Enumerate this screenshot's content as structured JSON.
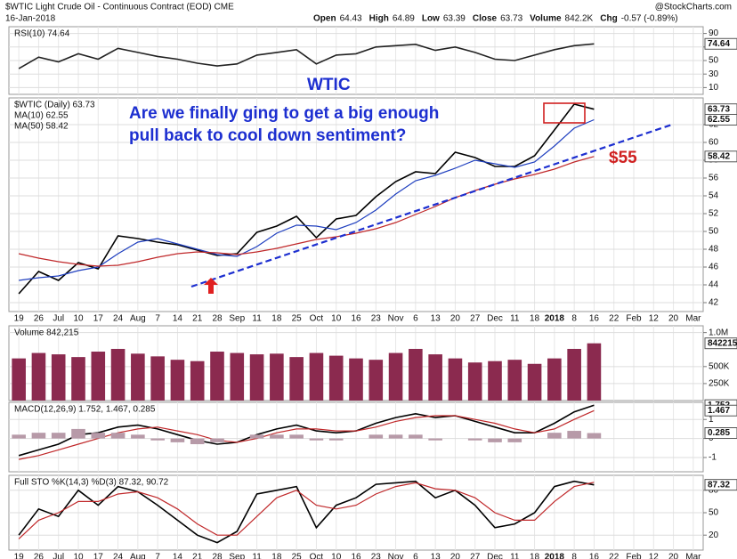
{
  "header": {
    "title": "$WTIC Light Crude Oil - Continuous Contract (EOD) CME",
    "date": "16-Jan-2018",
    "source": "@StockCharts.com",
    "quote": [
      {
        "label": "Open",
        "value": 64.43
      },
      {
        "label": "High",
        "value": 64.89
      },
      {
        "label": "Low",
        "value": 63.39
      },
      {
        "label": "Close",
        "value": 63.73
      },
      {
        "label": "Volume",
        "value": "842.2K"
      },
      {
        "label": "Chg",
        "value": "-0.57 (-0.89%)"
      }
    ]
  },
  "annotations": {
    "symbol": "WTIC",
    "question": [
      "Are we finally ging to get a big enough",
      "pull back to cool down sentiment?"
    ],
    "target": "$55"
  },
  "chart_data": [
    {
      "type": "line",
      "ylim": [
        0,
        100
      ],
      "yticks": [
        10,
        30,
        50,
        70,
        90
      ],
      "grid": true,
      "tags": [
        74.64
      ],
      "series": [
        {
          "name": "RSI(10) 74.64",
          "color": "#222222",
          "values": [
            38,
            55,
            48,
            60,
            52,
            68,
            62,
            56,
            52,
            46,
            42,
            45,
            58,
            62,
            66,
            45,
            58,
            60,
            70,
            72,
            74,
            65,
            70,
            62,
            52,
            50,
            58,
            66,
            72,
            74.64,
            null,
            null,
            null,
            null,
            null
          ]
        }
      ]
    },
    {
      "type": "line",
      "ylim": [
        41,
        65
      ],
      "yticks": [
        42,
        44,
        46,
        48,
        50,
        52,
        54,
        56,
        58,
        60,
        62
      ],
      "grid": true,
      "tags": [
        63.73,
        62.55,
        58.42
      ],
      "categories": [
        "19",
        "26",
        "Jul",
        "10",
        "17",
        "24",
        "Aug",
        "7",
        "14",
        "21",
        "28",
        "Sep",
        "11",
        "18",
        "25",
        "Oct",
        "10",
        "16",
        "23",
        "Nov",
        "6",
        "13",
        "20",
        "27",
        "Dec",
        "11",
        "18",
        "2018",
        "8",
        "16",
        "22",
        "Feb",
        "12",
        "20",
        "Mar"
      ],
      "series": [
        {
          "name": "$WTIC (Daily) 63.73",
          "color": "#000000",
          "values": [
            43,
            45.5,
            44.5,
            46.5,
            45.8,
            49.5,
            49.2,
            48.8,
            48.5,
            47.9,
            47.3,
            47.5,
            49.9,
            50.6,
            51.7,
            49.3,
            51.4,
            51.8,
            53.9,
            55.6,
            56.7,
            56.5,
            58.9,
            58.3,
            57.3,
            57.3,
            58.5,
            61.4,
            64.3,
            63.73,
            null,
            null,
            null,
            null,
            null
          ]
        },
        {
          "name": "MA(10) 62.55",
          "color": "#1f3fbf",
          "values": [
            44.5,
            44.8,
            45.0,
            45.6,
            46.0,
            47.5,
            48.8,
            49.2,
            48.6,
            48.0,
            47.4,
            47.2,
            48.3,
            49.8,
            50.7,
            50.6,
            50.2,
            51.0,
            52.4,
            54.2,
            55.7,
            56.3,
            57.1,
            58.0,
            57.6,
            57.2,
            57.8,
            59.6,
            61.6,
            62.55,
            null,
            null,
            null,
            null,
            null
          ]
        },
        {
          "name": "MA(50) 58.42",
          "color": "#c0282a",
          "values": [
            47.5,
            47.0,
            46.6,
            46.3,
            46.1,
            46.2,
            46.6,
            47.1,
            47.5,
            47.7,
            47.6,
            47.4,
            47.7,
            48.1,
            48.6,
            49.1,
            49.4,
            49.8,
            50.3,
            51.0,
            51.9,
            52.8,
            53.8,
            54.6,
            55.3,
            55.9,
            56.4,
            57.0,
            57.8,
            58.42,
            null,
            null,
            null,
            null,
            null
          ]
        }
      ]
    },
    {
      "type": "bar",
      "ylim": [
        0,
        1100000
      ],
      "yticks": [
        {
          "value": 250000,
          "label": "250K"
        },
        {
          "value": 500000,
          "label": "500K"
        },
        {
          "value": 1000000,
          "label": "1.0M"
        }
      ],
      "grid": true,
      "tags": [
        842215
      ],
      "series": [
        {
          "name": "Volume 842,215",
          "color": "#8b2a4f",
          "values": [
            620000,
            700000,
            680000,
            640000,
            720000,
            760000,
            690000,
            650000,
            600000,
            580000,
            720000,
            700000,
            680000,
            690000,
            640000,
            700000,
            660000,
            620000,
            600000,
            700000,
            760000,
            680000,
            620000,
            560000,
            580000,
            600000,
            540000,
            620000,
            760000,
            842215,
            null,
            null,
            null,
            null,
            null
          ]
        }
      ]
    },
    {
      "type": "line",
      "ylim": [
        -1.75,
        1.9
      ],
      "yticks": [
        -1,
        0,
        1
      ],
      "grid": true,
      "tags": [
        1.752,
        1.467,
        0.285
      ],
      "series": [
        {
          "name": "MACD(12,26,9) 1.752, 1.467, 0.285",
          "color": "#000000",
          "values": [
            -0.9,
            -0.6,
            -0.3,
            0.2,
            0.3,
            0.6,
            0.7,
            0.5,
            0.2,
            -0.1,
            -0.3,
            -0.2,
            0.2,
            0.5,
            0.7,
            0.4,
            0.3,
            0.4,
            0.8,
            1.1,
            1.3,
            1.1,
            1.2,
            0.9,
            0.6,
            0.3,
            0.3,
            0.8,
            1.4,
            1.752,
            null,
            null,
            null,
            null,
            null
          ]
        },
        {
          "color": "#c0282a",
          "values": [
            -1.1,
            -0.9,
            -0.6,
            -0.3,
            0,
            0.3,
            0.5,
            0.6,
            0.4,
            0.2,
            -0.1,
            -0.2,
            0,
            0.3,
            0.5,
            0.5,
            0.4,
            0.4,
            0.6,
            0.9,
            1.1,
            1.2,
            1.2,
            1.0,
            0.8,
            0.5,
            0.3,
            0.5,
            1.0,
            1.467,
            null,
            null,
            null,
            null,
            null
          ]
        },
        {
          "color": "#b79aa8",
          "mark": "bar",
          "values": [
            0.2,
            0.3,
            0.3,
            0.5,
            0.3,
            0.3,
            0.2,
            -0.1,
            -0.2,
            -0.3,
            -0.2,
            0,
            0.2,
            0.2,
            0.2,
            -0.1,
            -0.1,
            0,
            0.2,
            0.2,
            0.2,
            -0.1,
            0,
            -0.1,
            -0.2,
            -0.2,
            0,
            0.3,
            0.4,
            0.285,
            null,
            null,
            null,
            null,
            null
          ]
        }
      ]
    },
    {
      "type": "line",
      "ylim": [
        0,
        100
      ],
      "yticks": [
        20,
        50,
        80
      ],
      "grid": true,
      "tags": [
        87.32
      ],
      "categories": [
        "19",
        "26",
        "Jul",
        "10",
        "17",
        "24",
        "Aug",
        "7",
        "14",
        "21",
        "28",
        "Sep",
        "11",
        "18",
        "25",
        "Oct",
        "10",
        "16",
        "23",
        "Nov",
        "6",
        "13",
        "20",
        "27",
        "Dec",
        "11",
        "18",
        "2018",
        "8",
        "16",
        "22",
        "Feb",
        "12",
        "20",
        "Mar"
      ],
      "series": [
        {
          "name": "Full STO %K(14,3) %D(3) 87.32, 90.72",
          "color": "#000000",
          "values": [
            20,
            55,
            45,
            80,
            60,
            85,
            78,
            60,
            40,
            20,
            10,
            25,
            75,
            80,
            85,
            30,
            60,
            70,
            88,
            90,
            92,
            70,
            80,
            60,
            30,
            35,
            50,
            85,
            92,
            87.32,
            null,
            null,
            null,
            null,
            null
          ]
        },
        {
          "color": "#c0282a",
          "values": [
            15,
            40,
            50,
            65,
            65,
            75,
            78,
            70,
            55,
            35,
            20,
            20,
            45,
            70,
            80,
            60,
            55,
            60,
            75,
            85,
            90,
            82,
            80,
            70,
            50,
            40,
            40,
            65,
            85,
            90.72,
            null,
            null,
            null,
            null,
            null
          ]
        }
      ]
    }
  ]
}
